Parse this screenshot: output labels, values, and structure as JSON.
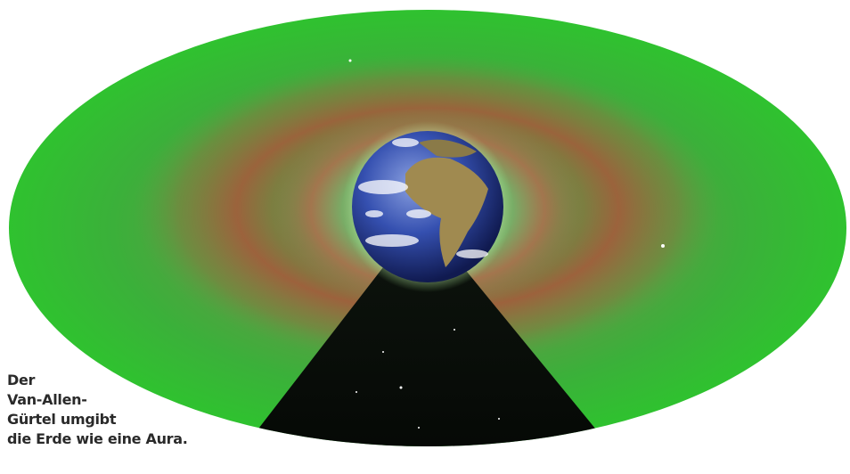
{
  "caption": {
    "lines": [
      "Der",
      "Van-Allen-",
      "Gürtel umgibt",
      "die Erde wie eine Aura."
    ]
  }
}
